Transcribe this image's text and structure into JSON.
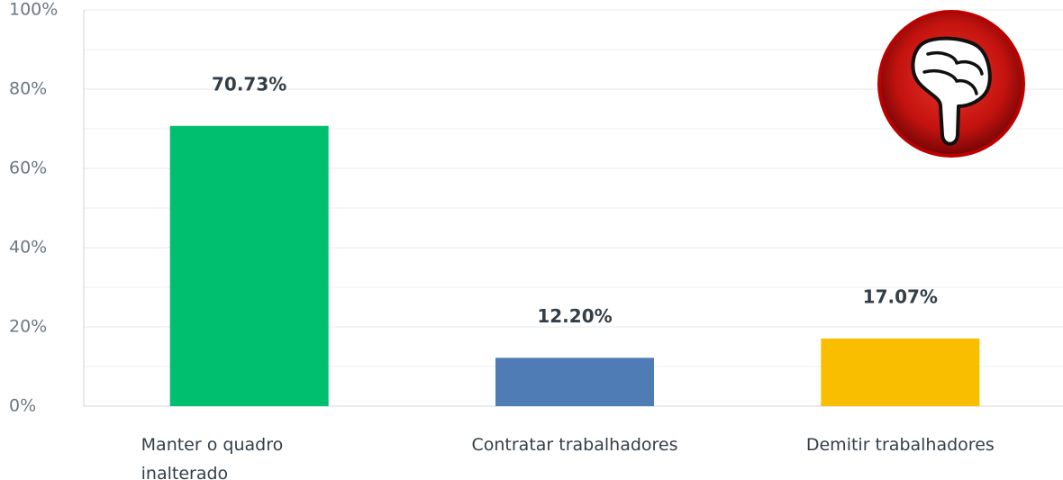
{
  "chart_data": {
    "type": "bar",
    "categories": [
      "Manter o quadro inalterado",
      "Contratar trabalhadores",
      "Demitir trabalhadores"
    ],
    "values": [
      70.73,
      12.2,
      17.07
    ],
    "value_labels": [
      "70.73%",
      "12.20%",
      "17.07%"
    ],
    "colors": [
      "#00bf6f",
      "#507cb6",
      "#f9be00"
    ],
    "ylim": [
      0,
      100
    ],
    "yticks": [
      {
        "value": 0,
        "label": "0%"
      },
      {
        "value": 20,
        "label": "20%"
      },
      {
        "value": 40,
        "label": "40%"
      },
      {
        "value": 60,
        "label": "60%"
      },
      {
        "value": 80,
        "label": "80%"
      },
      {
        "value": 100,
        "label": "100%"
      }
    ],
    "minor_yticks": [
      10,
      30,
      50,
      70,
      90
    ],
    "grid": true
  }
}
